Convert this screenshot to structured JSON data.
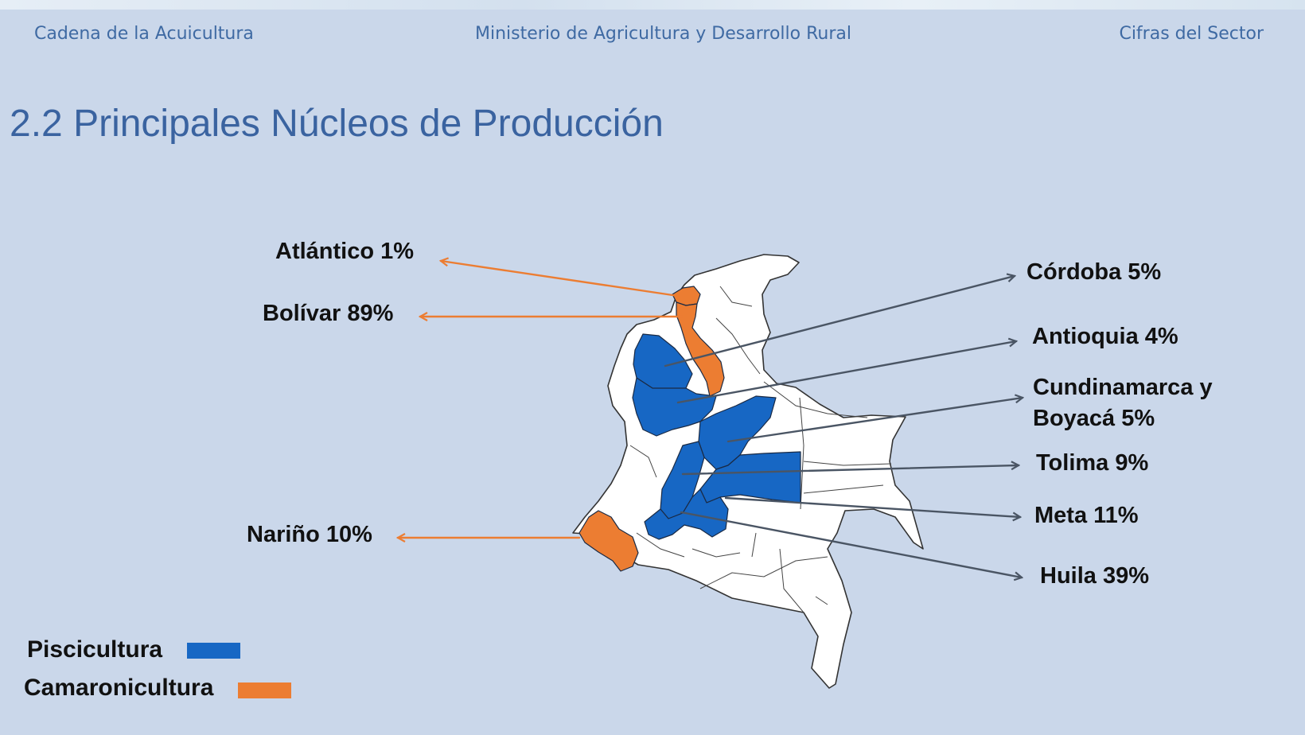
{
  "header": {
    "left": "Cadena de la Acuicultura",
    "center": "Ministerio de Agricultura y Desarrollo Rural",
    "right": "Cifras del Sector"
  },
  "title": "2.2 Principales Núcleos de Producción",
  "colors": {
    "piscicultura": "#1767c4",
    "camaronicultura": "#ec7d32",
    "background": "#cad7ea"
  },
  "regions": {
    "atlantico": {
      "name": "Atlántico",
      "pct": "1%",
      "label": "Atlántico 1%",
      "type": "camaronicultura"
    },
    "bolivar": {
      "name": "Bolívar",
      "pct": "89%",
      "label": "Bolívar 89%",
      "type": "camaronicultura"
    },
    "narino": {
      "name": "Nariño",
      "pct": "10%",
      "label": "Nariño 10%",
      "type": "camaronicultura"
    },
    "cordoba": {
      "name": "Córdoba",
      "pct": "5%",
      "label": "Córdoba 5%",
      "type": "piscicultura"
    },
    "antioquia": {
      "name": "Antioquia",
      "pct": "4%",
      "label": "Antioquia 4%",
      "type": "piscicultura"
    },
    "cundinamarca_boyaca": {
      "name": "Cundinamarca y Boyacá",
      "pct": "5%",
      "label_line1": "Cundinamarca y",
      "label_line2": "Boyacá  5%",
      "type": "piscicultura"
    },
    "tolima": {
      "name": "Tolima",
      "pct": "9%",
      "label": "Tolima 9%",
      "type": "piscicultura"
    },
    "meta": {
      "name": "Meta",
      "pct": "11%",
      "label": "Meta 11%",
      "type": "piscicultura"
    },
    "huila": {
      "name": "Huila",
      "pct": "39%",
      "label": "Huila 39%",
      "type": "piscicultura"
    }
  },
  "legend": {
    "piscicultura": "Piscicultura",
    "camaronicultura": "Camaronicultura"
  }
}
